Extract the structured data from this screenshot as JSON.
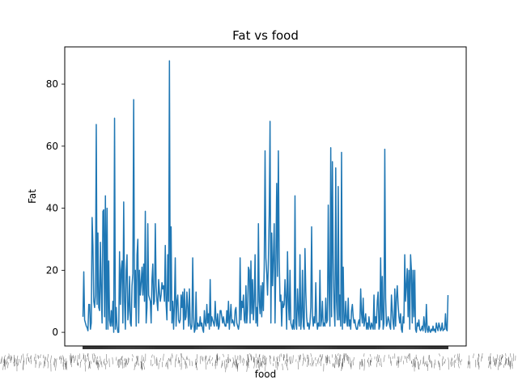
{
  "chart_data": {
    "type": "line",
    "title": "Fat vs food",
    "xlabel": "food",
    "ylabel": "Fat",
    "ylim": [
      -4.4,
      92.0
    ],
    "yticks": [
      0,
      20,
      40,
      60,
      80
    ],
    "ytick_labels": [
      "0",
      "20",
      "40",
      "60",
      "80"
    ],
    "grid": false,
    "legend": "none",
    "line_color": "#1f77b4",
    "x_category_count": 450,
    "x_tick_labels_note": "450 overlapping food-name tick labels rendered illegibly along the x-axis",
    "series": [
      {
        "values": [
          5,
          19.5,
          4,
          3,
          2,
          1.5,
          0.5,
          9,
          9,
          1,
          3,
          37,
          28,
          10,
          8,
          12,
          67,
          9,
          32,
          8,
          7,
          29,
          13,
          3,
          39,
          39.5,
          5,
          44,
          1,
          40,
          1,
          23,
          4,
          2,
          7,
          2,
          10,
          0,
          69,
          1,
          8,
          2,
          0,
          0,
          26,
          9,
          20,
          23,
          3,
          42,
          10,
          1,
          20,
          25,
          4,
          7,
          18,
          3,
          2,
          15,
          19,
          75,
          8,
          20,
          2,
          25,
          30,
          3,
          20,
          12,
          16,
          21,
          12,
          22,
          10,
          39,
          3,
          8,
          35,
          12,
          11,
          10,
          3,
          17,
          22,
          9,
          10,
          35,
          15,
          10,
          7,
          17,
          13,
          10,
          12,
          16,
          14,
          15,
          10,
          28,
          9,
          4,
          25,
          10,
          87.5,
          7,
          34,
          3,
          10,
          1,
          9,
          24,
          2,
          10,
          12,
          4,
          3,
          4,
          12,
          8,
          13,
          1,
          14,
          4,
          5,
          13,
          8,
          2,
          14,
          3,
          1,
          2,
          24,
          5,
          0,
          1,
          13,
          1,
          3,
          2,
          2,
          5,
          2,
          3,
          1,
          0,
          7,
          3,
          2,
          9,
          3,
          6,
          1,
          17,
          2,
          5,
          4,
          3,
          2,
          10,
          4,
          2,
          6,
          1,
          2,
          7,
          7,
          5,
          3,
          5,
          3,
          2,
          2,
          7,
          3,
          10,
          1,
          5,
          9,
          3,
          4,
          3,
          2,
          7,
          8,
          3,
          2,
          1,
          3,
          24,
          4,
          10,
          8,
          12,
          4,
          3,
          15,
          3,
          7,
          21,
          20,
          3,
          23,
          6,
          17,
          4,
          10,
          25,
          3,
          8,
          2,
          35,
          10,
          6,
          15,
          5,
          16,
          7,
          21,
          58.5,
          24,
          19,
          12,
          23,
          38,
          68,
          3,
          32,
          15,
          24,
          35,
          3,
          22,
          48,
          18,
          58.5,
          24,
          10,
          12,
          2,
          10,
          8,
          9,
          17,
          11,
          1,
          26,
          10,
          4,
          20,
          3,
          2,
          1,
          4,
          1,
          44,
          3,
          1,
          14,
          7,
          2,
          25,
          1,
          5,
          20,
          2,
          1,
          27,
          13,
          5,
          2,
          3,
          1,
          3,
          8,
          34,
          5,
          2,
          5,
          3,
          16,
          4,
          1,
          3,
          2,
          20,
          2,
          4,
          10,
          2,
          3,
          2,
          11,
          3,
          4,
          41,
          13,
          2,
          59.5,
          5,
          55,
          22,
          8,
          2,
          53,
          10,
          4,
          47,
          4,
          12,
          2,
          58,
          1,
          21,
          3,
          3,
          10,
          4,
          2,
          11,
          2,
          4,
          1,
          7,
          9,
          5,
          3,
          4,
          2,
          1,
          1,
          3,
          4,
          2,
          14,
          6,
          3,
          11,
          2,
          4,
          6,
          1,
          3,
          1,
          5,
          2,
          1,
          3,
          2,
          1,
          12,
          1,
          5,
          3,
          10,
          13,
          1,
          2,
          24,
          4,
          18,
          1,
          3,
          59,
          11,
          2,
          3,
          5,
          4,
          2,
          1,
          12,
          7,
          3,
          1,
          14,
          2,
          11,
          15,
          9,
          5,
          3,
          6,
          1,
          0,
          5,
          3,
          25,
          10,
          15,
          20.5,
          5,
          20,
          1,
          25,
          20,
          3,
          20,
          5,
          20,
          1,
          0,
          3,
          2,
          4,
          1,
          0.5,
          1,
          2,
          0.5,
          5,
          2,
          0,
          9,
          1,
          0,
          2,
          0.5,
          0,
          1,
          0.5,
          2,
          0.5,
          1,
          0,
          3,
          1.5,
          0.5,
          3,
          2,
          0.5,
          1,
          3,
          0.5,
          1,
          1,
          6,
          1,
          0.5,
          12
        ]
      }
    ]
  }
}
